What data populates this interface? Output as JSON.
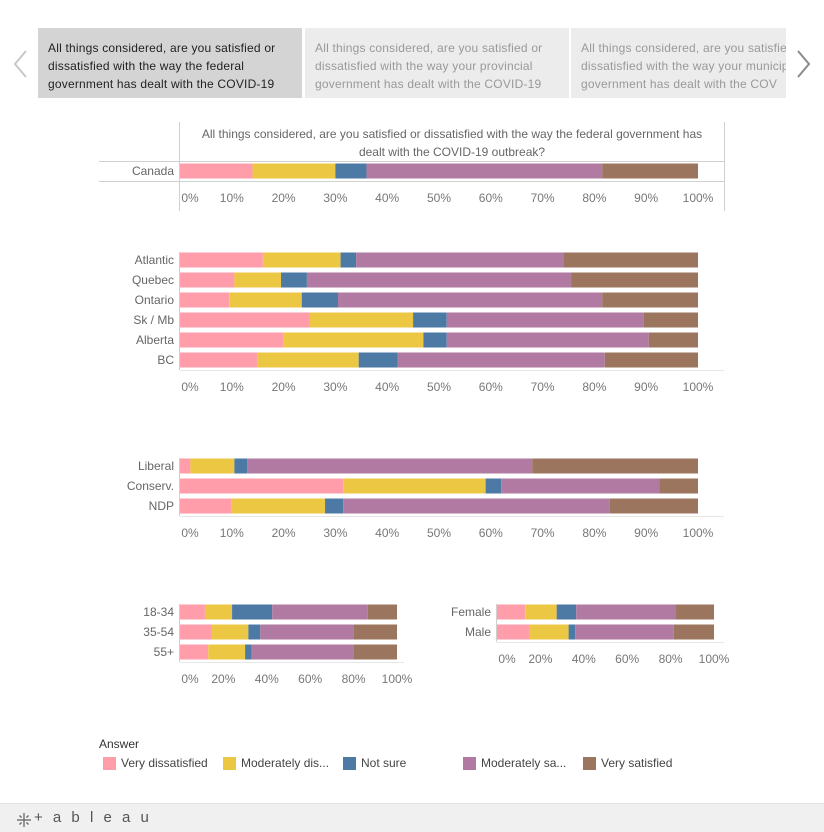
{
  "tabs": [
    {
      "label": "All things considered, are you satisfied or dissatisfied with the way the federal government has dealt with the COVID-19",
      "active": true
    },
    {
      "label": "All things considered, are you satisfied or dissatisfied with the way your provincial government has dealt with the COVID-19",
      "active": false
    },
    {
      "label": "All things considered, are you satisfied or dissatisfied with the way your municipal government has dealt with the COV",
      "active": false
    }
  ],
  "footer": {
    "brand": "+ a b l e a u",
    "icon": "tableau-plus-icon"
  },
  "colors": {
    "Very dissatisfied": "#ff9daa",
    "Moderately dissatisfied": "#ecc744",
    "Not sure": "#4d79a5",
    "Moderately satisfied": "#b07aa2",
    "Very satisfied": "#9c755f",
    "grid": "#e6e6e6",
    "axis": "#d0d0d0",
    "label": "#666666"
  },
  "legend": {
    "title": "Answer",
    "items": [
      {
        "key": "Very dissatisfied",
        "label": "Very dissatisfied"
      },
      {
        "key": "Moderately dissatisfied",
        "label": "Moderately dis..."
      },
      {
        "key": "Not sure",
        "label": "Not sure"
      },
      {
        "key": "Moderately satisfied",
        "label": "Moderately sa..."
      },
      {
        "key": "Very satisfied",
        "label": "Very satisfied"
      }
    ]
  },
  "chart_data": [
    {
      "type": "bar",
      "stacked": true,
      "orientation": "horizontal",
      "title": "All things considered, are you satisfied or dissatisfied with the way the federal government has dealt with the COVID-19 outbreak?",
      "categories": [
        "Canada"
      ],
      "xlim": [
        0,
        100
      ],
      "ticks": [
        "0%",
        "10%",
        "20%",
        "30%",
        "40%",
        "50%",
        "60%",
        "70%",
        "80%",
        "90%",
        "100%"
      ],
      "series": [
        {
          "name": "Very dissatisfied",
          "values": [
            14
          ]
        },
        {
          "name": "Moderately dissatisfied",
          "values": [
            16
          ]
        },
        {
          "name": "Not sure",
          "values": [
            6
          ]
        },
        {
          "name": "Moderately satisfied",
          "values": [
            45.5
          ]
        },
        {
          "name": "Very satisfied",
          "values": [
            18.5
          ]
        }
      ]
    },
    {
      "type": "bar",
      "stacked": true,
      "orientation": "horizontal",
      "categories": [
        "Atlantic",
        "Quebec",
        "Ontario",
        "Sk / Mb",
        "Alberta",
        "BC"
      ],
      "xlim": [
        0,
        100
      ],
      "ticks": [
        "0%",
        "10%",
        "20%",
        "30%",
        "40%",
        "50%",
        "60%",
        "70%",
        "80%",
        "90%",
        "100%"
      ],
      "series": [
        {
          "name": "Very dissatisfied",
          "values": [
            16,
            10.5,
            9.5,
            25,
            20,
            15
          ]
        },
        {
          "name": "Moderately dissatisfied",
          "values": [
            15,
            9,
            14,
            20,
            27,
            19.5
          ]
        },
        {
          "name": "Not sure",
          "values": [
            3,
            5,
            7,
            6.5,
            4.5,
            7.5
          ]
        },
        {
          "name": "Moderately satisfied",
          "values": [
            40,
            51,
            51,
            38,
            39,
            40
          ]
        },
        {
          "name": "Very satisfied",
          "values": [
            26,
            24.5,
            18.5,
            10.5,
            9.5,
            18
          ]
        }
      ]
    },
    {
      "type": "bar",
      "stacked": true,
      "orientation": "horizontal",
      "categories": [
        "Liberal",
        "Conserv.",
        "NDP"
      ],
      "xlim": [
        0,
        100
      ],
      "ticks": [
        "0%",
        "10%",
        "20%",
        "30%",
        "40%",
        "50%",
        "60%",
        "70%",
        "80%",
        "90%",
        "100%"
      ],
      "series": [
        {
          "name": "Very dissatisfied",
          "values": [
            2,
            31.5,
            10
          ]
        },
        {
          "name": "Moderately dissatisfied",
          "values": [
            8.5,
            27.5,
            18
          ]
        },
        {
          "name": "Not sure",
          "values": [
            2.5,
            3,
            3.5
          ]
        },
        {
          "name": "Moderately satisfied",
          "values": [
            55,
            30.5,
            51.5
          ]
        },
        {
          "name": "Very satisfied",
          "values": [
            32,
            7.5,
            17
          ]
        }
      ]
    },
    {
      "type": "bar",
      "stacked": true,
      "orientation": "horizontal",
      "categories": [
        "18-34",
        "35-54",
        "55+"
      ],
      "xlim": [
        0,
        100
      ],
      "ticks": [
        "0%",
        "20%",
        "40%",
        "60%",
        "80%",
        "100%"
      ],
      "series": [
        {
          "name": "Very dissatisfied",
          "values": [
            11.5,
            14.5,
            13
          ]
        },
        {
          "name": "Moderately dissatisfied",
          "values": [
            12.5,
            17,
            17
          ]
        },
        {
          "name": "Not sure",
          "values": [
            18.5,
            5.5,
            3
          ]
        },
        {
          "name": "Moderately satisfied",
          "values": [
            44,
            43,
            47
          ]
        },
        {
          "name": "Very satisfied",
          "values": [
            13.5,
            20,
            20
          ]
        }
      ]
    },
    {
      "type": "bar",
      "stacked": true,
      "orientation": "horizontal",
      "categories": [
        "Female",
        "Male"
      ],
      "xlim": [
        0,
        100
      ],
      "ticks": [
        "0%",
        "20%",
        "40%",
        "60%",
        "80%",
        "100%"
      ],
      "series": [
        {
          "name": "Very dissatisfied",
          "values": [
            13,
            15
          ]
        },
        {
          "name": "Moderately dissatisfied",
          "values": [
            14.5,
            18
          ]
        },
        {
          "name": "Not sure",
          "values": [
            9,
            3
          ]
        },
        {
          "name": "Moderately satisfied",
          "values": [
            46,
            45.5
          ]
        },
        {
          "name": "Very satisfied",
          "values": [
            17.5,
            18.5
          ]
        }
      ]
    }
  ]
}
